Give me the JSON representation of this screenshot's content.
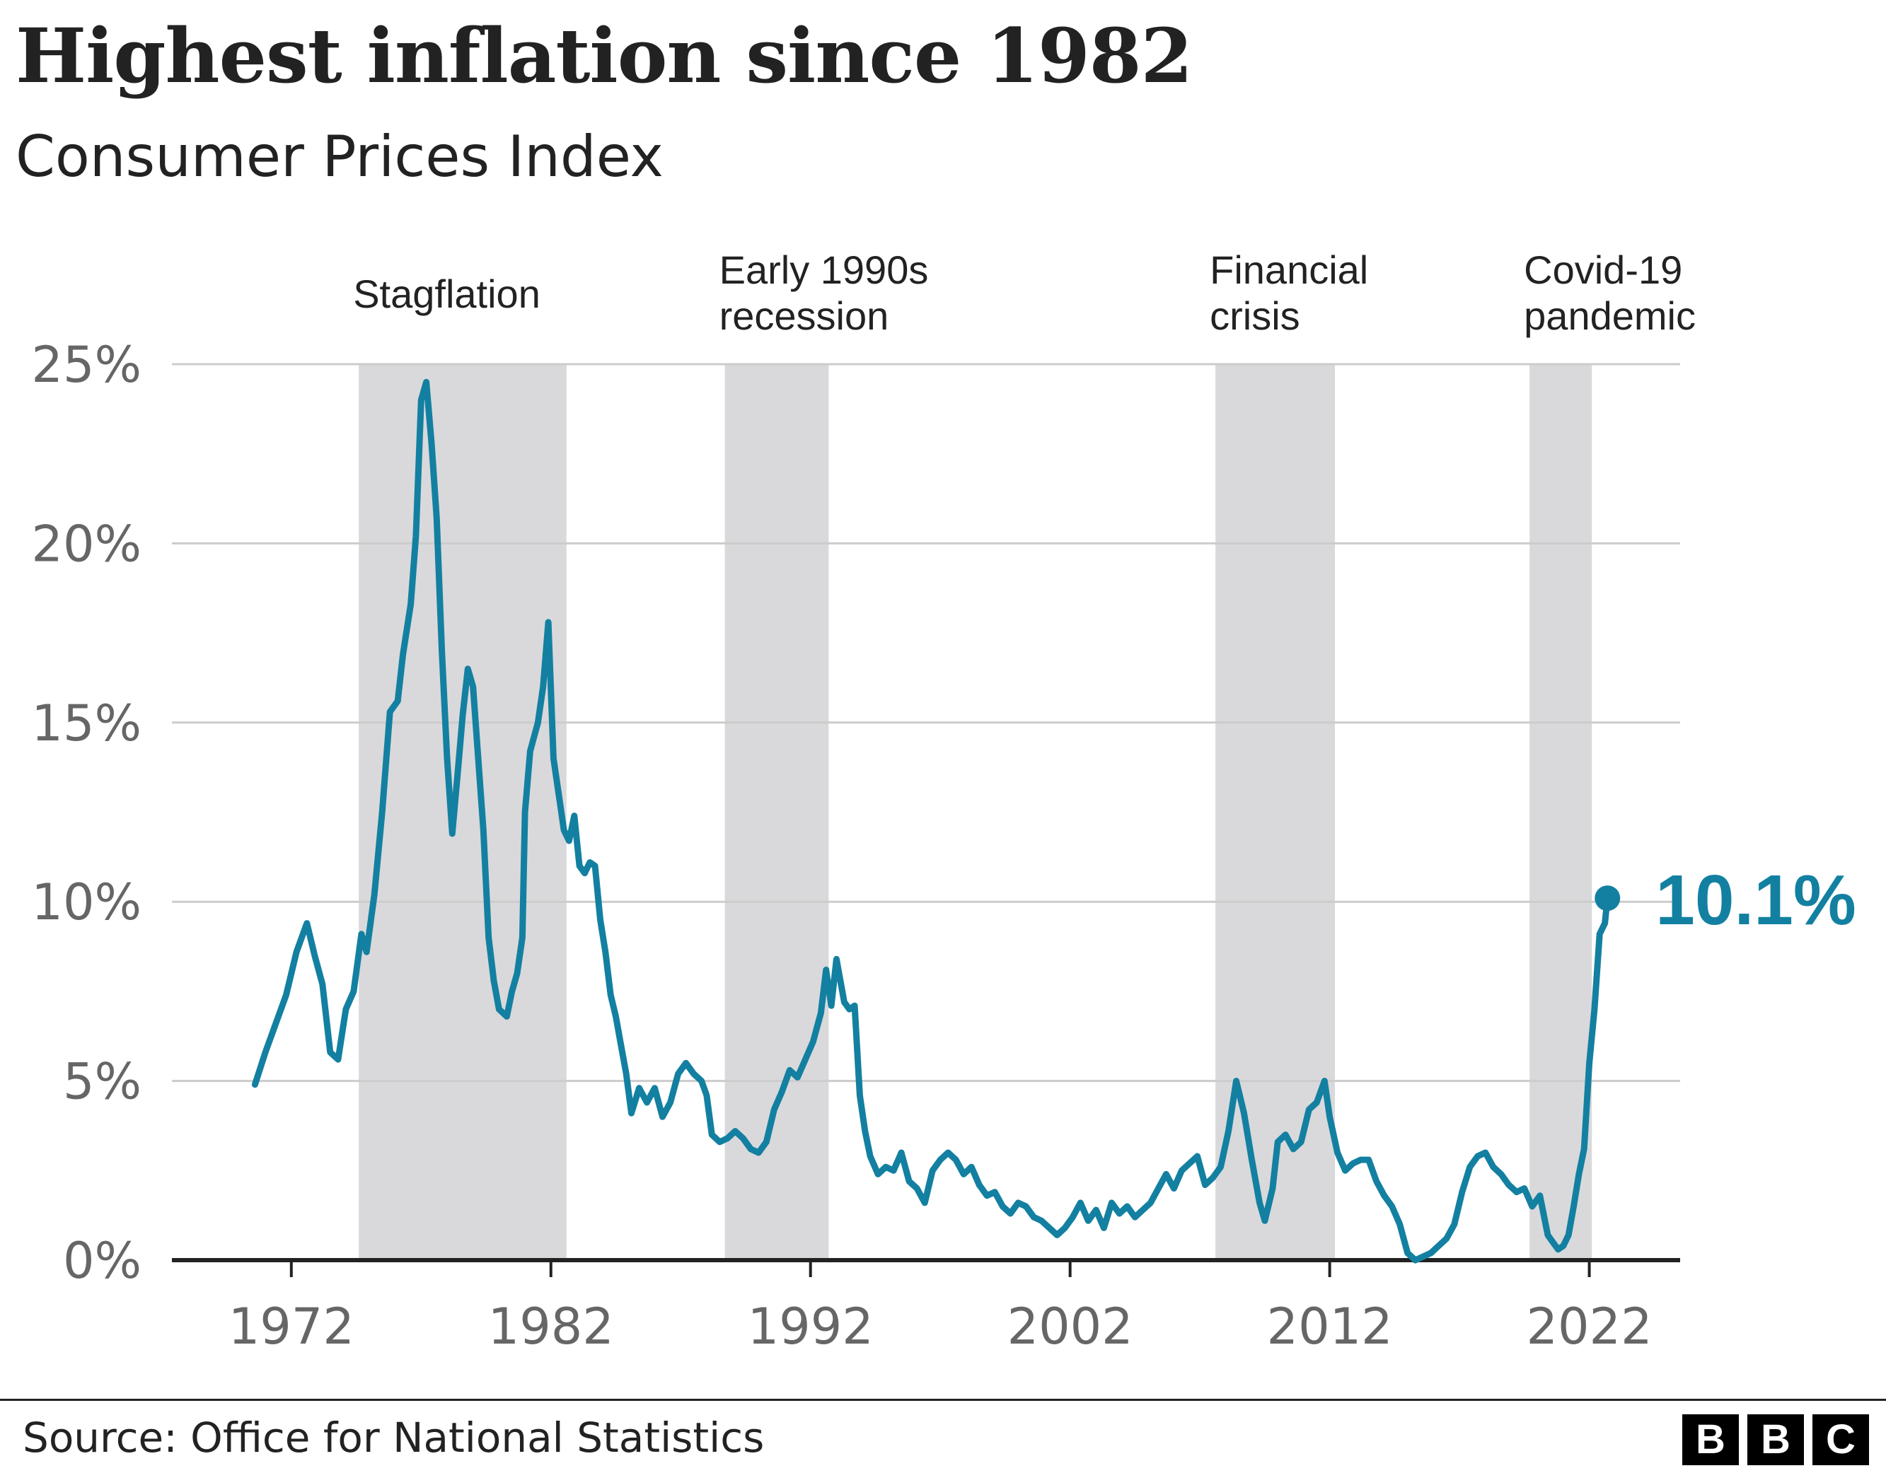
{
  "title": "Highest inflation since 1982",
  "subtitle": "Consumer Prices Index",
  "source": "Source: Office for National Statistics",
  "logo": [
    "B",
    "B",
    "C"
  ],
  "colors": {
    "line": "#1380A1",
    "band": "#D9D9DB",
    "grid": "#CCCCCC",
    "axis": "#222222"
  },
  "chart_data": {
    "type": "line",
    "ylabel": "",
    "xlabel": "",
    "ylim": [
      0,
      25
    ],
    "xlim": [
      1967.4,
      2025.5
    ],
    "yticks": [
      "0%",
      "5%",
      "10%",
      "15%",
      "20%",
      "25%"
    ],
    "xticks": [
      "1972",
      "1982",
      "1992",
      "2002",
      "2012",
      "2022"
    ],
    "grid": true,
    "shaded_periods": [
      {
        "label": [
          "Stagflation"
        ],
        "start": 1974.6,
        "end": 1982.6
      },
      {
        "label": [
          "Early 1990s",
          "recession"
        ],
        "start": 1988.7,
        "end": 1992.7
      },
      {
        "label": [
          "Financial",
          "crisis"
        ],
        "start": 2007.6,
        "end": 2012.2
      },
      {
        "label": [
          "Covid-19",
          "pandemic"
        ],
        "start": 2019.7,
        "end": 2022.1
      }
    ],
    "series": [
      {
        "points": [
          [
            1970.6,
            4.9
          ],
          [
            1971.0,
            5.8
          ],
          [
            1971.4,
            6.6
          ],
          [
            1971.8,
            7.4
          ],
          [
            1972.2,
            8.6
          ],
          [
            1972.6,
            9.4
          ],
          [
            1972.9,
            8.5
          ],
          [
            1973.2,
            7.7
          ],
          [
            1973.5,
            5.8
          ],
          [
            1973.8,
            5.6
          ],
          [
            1974.1,
            7.0
          ],
          [
            1974.4,
            7.5
          ],
          [
            1974.7,
            9.1
          ],
          [
            1974.9,
            8.6
          ],
          [
            1975.2,
            10.2
          ],
          [
            1975.5,
            12.5
          ],
          [
            1975.8,
            15.3
          ],
          [
            1976.1,
            15.6
          ],
          [
            1976.3,
            16.9
          ],
          [
            1976.6,
            18.3
          ],
          [
            1976.8,
            20.2
          ],
          [
            1977.0,
            24.0
          ],
          [
            1977.2,
            24.5
          ],
          [
            1977.4,
            22.8
          ],
          [
            1977.6,
            20.7
          ],
          [
            1977.8,
            17.0
          ],
          [
            1978.0,
            14.0
          ],
          [
            1978.2,
            11.9
          ],
          [
            1978.4,
            13.5
          ],
          [
            1978.6,
            15.2
          ],
          [
            1978.8,
            16.5
          ],
          [
            1979.0,
            16.0
          ],
          [
            1979.2,
            14.0
          ],
          [
            1979.4,
            12.0
          ],
          [
            1979.6,
            9.0
          ],
          [
            1979.8,
            7.8
          ],
          [
            1980.0,
            7.0
          ],
          [
            1980.3,
            6.8
          ],
          [
            1980.5,
            7.5
          ],
          [
            1980.7,
            8.0
          ],
          [
            1980.9,
            9.0
          ],
          [
            1981.0,
            12.5
          ],
          [
            1981.2,
            14.2
          ],
          [
            1981.5,
            15.0
          ],
          [
            1981.7,
            16.0
          ],
          [
            1981.9,
            17.8
          ],
          [
            1982.1,
            14.0
          ],
          [
            1982.3,
            13.0
          ],
          [
            1982.5,
            12.0
          ],
          [
            1982.7,
            11.7
          ],
          [
            1982.9,
            12.4
          ],
          [
            1983.1,
            11.0
          ],
          [
            1983.3,
            10.8
          ],
          [
            1983.5,
            11.1
          ],
          [
            1983.7,
            11.0
          ],
          [
            1983.9,
            9.5
          ],
          [
            1984.1,
            8.6
          ],
          [
            1984.3,
            7.4
          ],
          [
            1984.5,
            6.8
          ],
          [
            1984.7,
            6.0
          ],
          [
            1984.9,
            5.2
          ],
          [
            1985.1,
            4.1
          ],
          [
            1985.4,
            4.8
          ],
          [
            1985.7,
            4.4
          ],
          [
            1986.0,
            4.8
          ],
          [
            1986.3,
            4.0
          ],
          [
            1986.6,
            4.4
          ],
          [
            1986.9,
            5.2
          ],
          [
            1987.2,
            5.5
          ],
          [
            1987.5,
            5.2
          ],
          [
            1987.8,
            5.0
          ],
          [
            1988.0,
            4.6
          ],
          [
            1988.2,
            3.5
          ],
          [
            1988.5,
            3.3
          ],
          [
            1988.8,
            3.4
          ],
          [
            1989.1,
            3.6
          ],
          [
            1989.4,
            3.4
          ],
          [
            1989.7,
            3.1
          ],
          [
            1990.0,
            3.0
          ],
          [
            1990.3,
            3.3
          ],
          [
            1990.6,
            4.2
          ],
          [
            1990.9,
            4.7
          ],
          [
            1991.2,
            5.3
          ],
          [
            1991.5,
            5.1
          ],
          [
            1991.8,
            5.6
          ],
          [
            1992.1,
            6.1
          ],
          [
            1992.4,
            6.9
          ],
          [
            1992.6,
            8.1
          ],
          [
            1992.8,
            7.1
          ],
          [
            1993.0,
            8.4
          ],
          [
            1993.3,
            7.2
          ],
          [
            1993.5,
            7.0
          ],
          [
            1993.7,
            7.1
          ],
          [
            1993.9,
            4.6
          ],
          [
            1994.1,
            3.6
          ],
          [
            1994.3,
            2.9
          ],
          [
            1994.6,
            2.4
          ],
          [
            1994.9,
            2.6
          ],
          [
            1995.2,
            2.5
          ],
          [
            1995.5,
            3.0
          ],
          [
            1995.8,
            2.2
          ],
          [
            1996.1,
            2.0
          ],
          [
            1996.4,
            1.6
          ],
          [
            1996.7,
            2.5
          ],
          [
            1997.0,
            2.8
          ],
          [
            1997.3,
            3.0
          ],
          [
            1997.6,
            2.8
          ],
          [
            1997.9,
            2.4
          ],
          [
            1998.2,
            2.6
          ],
          [
            1998.5,
            2.1
          ],
          [
            1998.8,
            1.8
          ],
          [
            1999.1,
            1.9
          ],
          [
            1999.4,
            1.5
          ],
          [
            1999.7,
            1.3
          ],
          [
            2000.0,
            1.6
          ],
          [
            2000.3,
            1.5
          ],
          [
            2000.6,
            1.2
          ],
          [
            2000.9,
            1.1
          ],
          [
            2001.2,
            0.9
          ],
          [
            2001.5,
            0.7
          ],
          [
            2001.8,
            0.9
          ],
          [
            2002.1,
            1.2
          ],
          [
            2002.4,
            1.6
          ],
          [
            2002.7,
            1.1
          ],
          [
            2003.0,
            1.4
          ],
          [
            2003.3,
            0.9
          ],
          [
            2003.6,
            1.6
          ],
          [
            2003.9,
            1.3
          ],
          [
            2004.2,
            1.5
          ],
          [
            2004.5,
            1.2
          ],
          [
            2004.8,
            1.4
          ],
          [
            2005.1,
            1.6
          ],
          [
            2005.4,
            2.0
          ],
          [
            2005.7,
            2.4
          ],
          [
            2006.0,
            2.0
          ],
          [
            2006.3,
            2.5
          ],
          [
            2006.6,
            2.7
          ],
          [
            2006.9,
            2.9
          ],
          [
            2007.2,
            2.1
          ],
          [
            2007.5,
            2.3
          ],
          [
            2007.8,
            2.6
          ],
          [
            2008.1,
            3.6
          ],
          [
            2008.4,
            5.0
          ],
          [
            2008.7,
            4.1
          ],
          [
            2009.0,
            2.8
          ],
          [
            2009.3,
            1.6
          ],
          [
            2009.5,
            1.1
          ],
          [
            2009.8,
            2.0
          ],
          [
            2010.0,
            3.3
          ],
          [
            2010.3,
            3.5
          ],
          [
            2010.6,
            3.1
          ],
          [
            2010.9,
            3.3
          ],
          [
            2011.2,
            4.2
          ],
          [
            2011.5,
            4.4
          ],
          [
            2011.8,
            5.0
          ],
          [
            2012.0,
            4.0
          ],
          [
            2012.3,
            3.0
          ],
          [
            2012.6,
            2.5
          ],
          [
            2012.9,
            2.7
          ],
          [
            2013.2,
            2.8
          ],
          [
            2013.5,
            2.8
          ],
          [
            2013.8,
            2.2
          ],
          [
            2014.1,
            1.8
          ],
          [
            2014.4,
            1.5
          ],
          [
            2014.7,
            1.0
          ],
          [
            2015.0,
            0.2
          ],
          [
            2015.3,
            0.0
          ],
          [
            2015.6,
            0.1
          ],
          [
            2015.9,
            0.2
          ],
          [
            2016.2,
            0.4
          ],
          [
            2016.5,
            0.6
          ],
          [
            2016.8,
            1.0
          ],
          [
            2017.1,
            1.9
          ],
          [
            2017.4,
            2.6
          ],
          [
            2017.7,
            2.9
          ],
          [
            2018.0,
            3.0
          ],
          [
            2018.3,
            2.6
          ],
          [
            2018.6,
            2.4
          ],
          [
            2018.9,
            2.1
          ],
          [
            2019.2,
            1.9
          ],
          [
            2019.5,
            2.0
          ],
          [
            2019.8,
            1.5
          ],
          [
            2020.1,
            1.8
          ],
          [
            2020.4,
            0.7
          ],
          [
            2020.6,
            0.5
          ],
          [
            2020.8,
            0.3
          ],
          [
            2021.0,
            0.4
          ],
          [
            2021.2,
            0.7
          ],
          [
            2021.4,
            1.5
          ],
          [
            2021.6,
            2.4
          ],
          [
            2021.8,
            3.1
          ],
          [
            2022.0,
            5.5
          ],
          [
            2022.2,
            7.0
          ],
          [
            2022.4,
            9.1
          ],
          [
            2022.6,
            9.4
          ],
          [
            2022.7,
            10.1
          ]
        ]
      }
    ],
    "callout": {
      "label": "10.1%",
      "x": 2022.7,
      "y": 10.1
    }
  }
}
